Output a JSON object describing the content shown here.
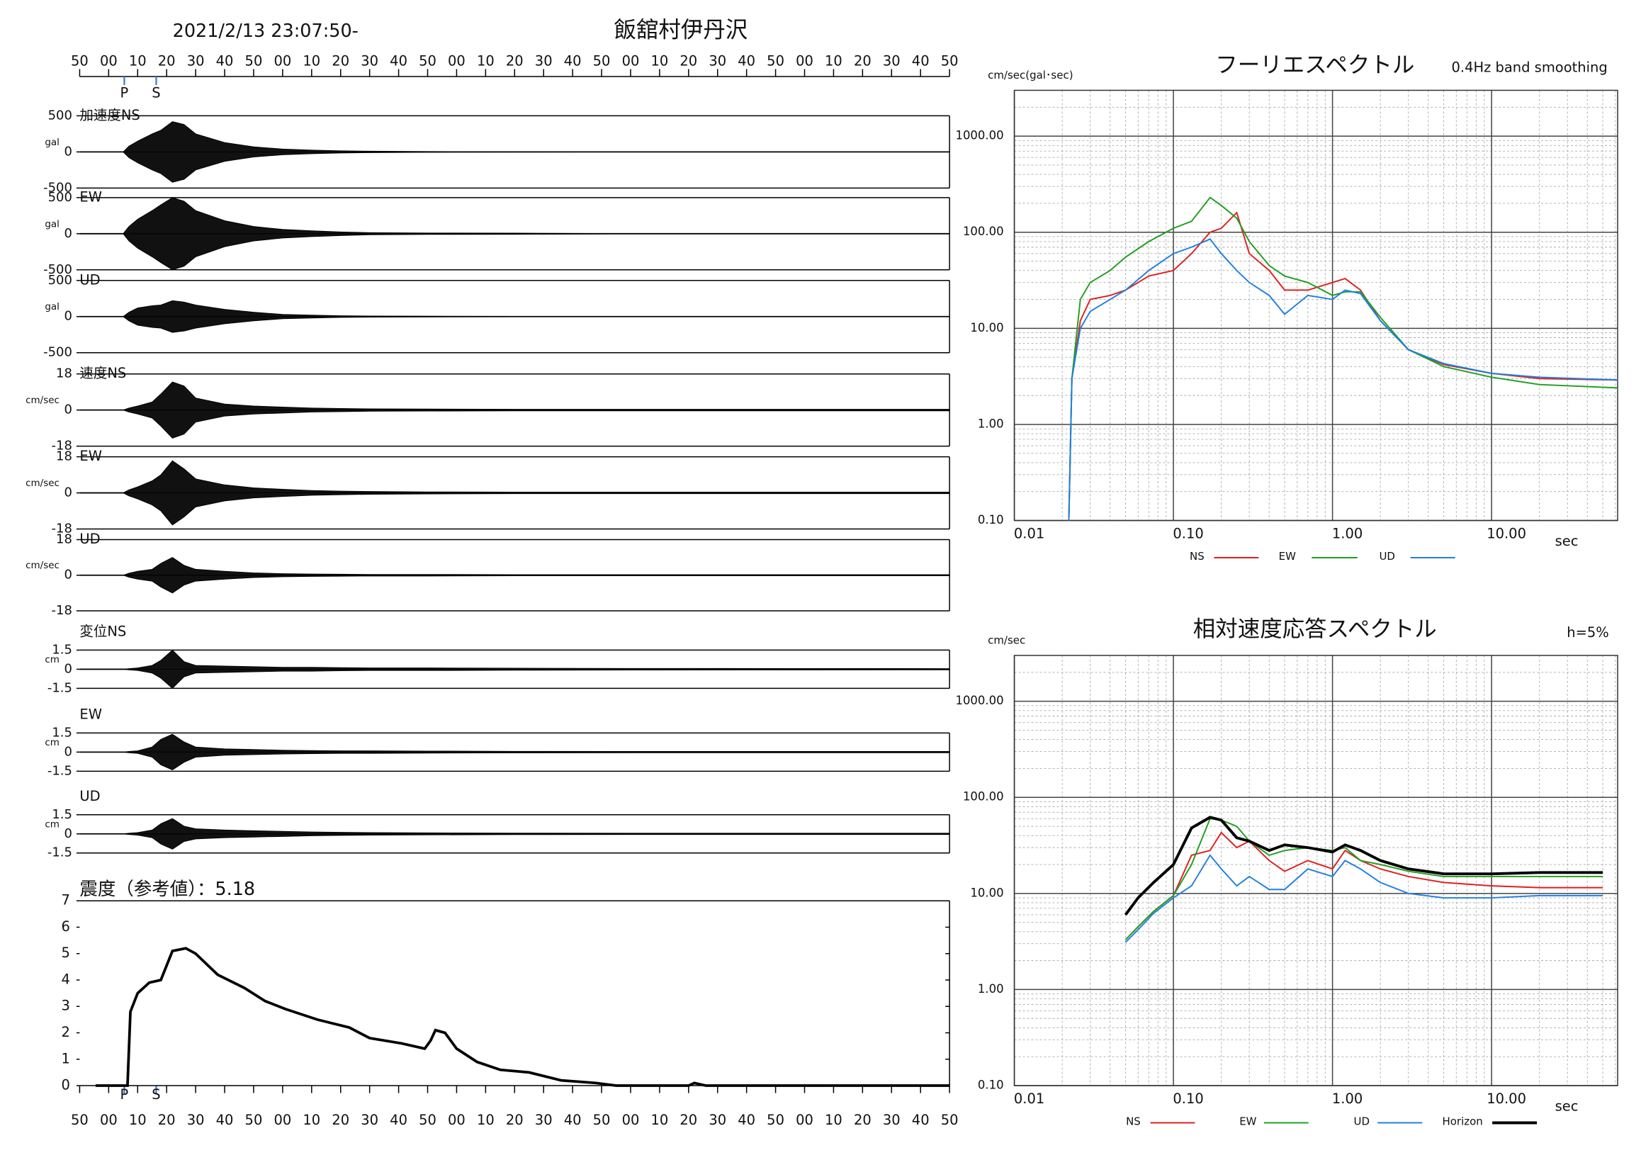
{
  "chart_data": [
    {
      "type": "waveform",
      "title": "飯舘村伊丹沢",
      "subtitle": "2021/2/13 23:07:50-",
      "xlim": [
        0,
        300
      ],
      "xticks": [
        {
          "value": 0,
          "label": "50"
        },
        {
          "value": 10,
          "label": "00"
        },
        {
          "value": 20,
          "label": "10"
        },
        {
          "value": 30,
          "label": "20"
        },
        {
          "value": 40,
          "label": "30"
        },
        {
          "value": 50,
          "label": "40"
        },
        {
          "value": 60,
          "label": "50"
        },
        {
          "value": 70,
          "label": "00"
        },
        {
          "value": 80,
          "label": "10"
        },
        {
          "value": 90,
          "label": "20"
        },
        {
          "value": 100,
          "label": "30"
        },
        {
          "value": 110,
          "label": "40"
        },
        {
          "value": 120,
          "label": "50"
        },
        {
          "value": 130,
          "label": "00"
        },
        {
          "value": 140,
          "label": "10"
        },
        {
          "value": 150,
          "label": "20"
        },
        {
          "value": 160,
          "label": "30"
        },
        {
          "value": 170,
          "label": "40"
        },
        {
          "value": 180,
          "label": "50"
        },
        {
          "value": 190,
          "label": "00"
        },
        {
          "value": 200,
          "label": "10"
        },
        {
          "value": 210,
          "label": "20"
        },
        {
          "value": 220,
          "label": "30"
        },
        {
          "value": 230,
          "label": "40"
        },
        {
          "value": 240,
          "label": "50"
        },
        {
          "value": 250,
          "label": "00"
        },
        {
          "value": 260,
          "label": "10"
        },
        {
          "value": 270,
          "label": "20"
        },
        {
          "value": 280,
          "label": "30"
        },
        {
          "value": 290,
          "label": "40"
        },
        {
          "value": 300,
          "label": "50"
        }
      ],
      "markers": [
        {
          "label": "P",
          "value": 15.4,
          "color": "#3a7ad8"
        },
        {
          "label": "S",
          "value": 26.4,
          "color": "#3a7ad8"
        }
      ],
      "x": [
        0,
        15,
        17,
        20,
        25,
        28,
        32,
        36,
        40,
        50,
        60,
        70,
        80,
        90,
        100,
        120,
        150,
        200,
        300
      ],
      "panels": [
        {
          "label": "加速度NS",
          "unit": "gal",
          "ylim": [
            -500,
            500
          ],
          "yticks": [
            500,
            0,
            -500
          ],
          "values": [
            0,
            0,
            80,
            150,
            250,
            300,
            420,
            380,
            250,
            130,
            70,
            40,
            25,
            15,
            10,
            5,
            3,
            0,
            0
          ]
        },
        {
          "label": "EW",
          "unit": "gal",
          "ylim": [
            -500,
            500
          ],
          "yticks": [
            500,
            0,
            -500
          ],
          "values": [
            0,
            0,
            100,
            200,
            320,
            400,
            500,
            450,
            320,
            180,
            100,
            60,
            40,
            25,
            15,
            10,
            8,
            0,
            0
          ]
        },
        {
          "label": "UD",
          "unit": "gal",
          "ylim": [
            -500,
            500
          ],
          "yticks": [
            500,
            0,
            -500
          ],
          "values": [
            0,
            0,
            60,
            120,
            150,
            160,
            220,
            200,
            160,
            100,
            60,
            30,
            20,
            12,
            8,
            5,
            3,
            0,
            0
          ]
        },
        {
          "label": "速度NS",
          "unit": "cm/sec",
          "ylim": [
            -18,
            18
          ],
          "yticks": [
            18,
            0,
            -18
          ],
          "values": [
            0,
            0,
            1,
            2,
            4,
            8,
            14,
            12,
            6,
            3,
            2,
            1.5,
            1,
            0.8,
            0.6,
            0.5,
            0.4,
            0.4,
            0.4
          ]
        },
        {
          "label": "EW",
          "unit": "cm/sec",
          "ylim": [
            -18,
            18
          ],
          "yticks": [
            18,
            0,
            -18
          ],
          "values": [
            0,
            0,
            1.5,
            3,
            6,
            9,
            16,
            12,
            7,
            4,
            2.5,
            1.8,
            1.2,
            0.9,
            0.7,
            0.5,
            0.4,
            0.4,
            0.4
          ]
        },
        {
          "label": "UD",
          "unit": "cm/sec",
          "ylim": [
            -18,
            18
          ],
          "yticks": [
            18,
            0,
            -18
          ],
          "values": [
            0,
            0,
            1,
            2,
            3,
            6,
            9,
            5,
            3,
            2,
            1.2,
            0.8,
            0.6,
            0.5,
            0.4,
            0.4,
            0.3,
            0.3,
            0.3
          ]
        },
        {
          "label": "変位NS",
          "unit": "cm",
          "ylim": [
            -1.5,
            1.5
          ],
          "yticks": [
            1.5,
            0,
            -1.5
          ],
          "values": [
            0,
            0,
            0.05,
            0.1,
            0.3,
            0.7,
            1.5,
            0.6,
            0.3,
            0.25,
            0.2,
            0.15,
            0.15,
            0.12,
            0.1,
            0.1,
            0.08,
            0.06,
            0.05
          ]
        },
        {
          "label": "EW",
          "unit": "cm",
          "ylim": [
            -1.5,
            1.5
          ],
          "yticks": [
            1.5,
            0,
            -1.5
          ],
          "values": [
            0,
            0,
            0.05,
            0.1,
            0.4,
            1.0,
            1.4,
            0.8,
            0.4,
            0.25,
            0.2,
            0.15,
            0.12,
            0.1,
            0.1,
            0.08,
            0.06,
            0.05,
            0.05
          ]
        },
        {
          "label": "UD",
          "unit": "cm",
          "ylim": [
            -1.5,
            1.5
          ],
          "yticks": [
            1.5,
            0,
            -1.5
          ],
          "values": [
            0,
            0,
            0.05,
            0.1,
            0.3,
            0.8,
            1.2,
            0.6,
            0.4,
            0.3,
            0.25,
            0.2,
            0.15,
            0.12,
            0.1,
            0.08,
            0.06,
            0.05,
            0.05
          ]
        }
      ]
    },
    {
      "type": "line",
      "title": "震度（参考値）：5.18",
      "color": "#000000",
      "x": [
        5.5,
        16.5,
        17.5,
        20,
        24,
        28,
        32,
        36.6,
        40,
        47.6,
        56.8,
        64,
        71,
        82,
        93,
        100,
        111,
        119,
        121,
        122.7,
        126,
        130,
        137,
        145,
        155,
        166,
        178,
        185,
        210,
        212,
        216,
        300
      ],
      "values": [
        0,
        0,
        2.8,
        3.5,
        3.9,
        4.0,
        5.1,
        5.2,
        5.0,
        4.2,
        3.7,
        3.2,
        2.9,
        2.5,
        2.2,
        1.8,
        1.6,
        1.4,
        1.7,
        2.1,
        2.0,
        1.4,
        0.9,
        0.6,
        0.5,
        0.2,
        0.1,
        0,
        0,
        0.1,
        0,
        0
      ],
      "ylim": [
        0,
        7
      ],
      "yticks": [
        0,
        1,
        2,
        3,
        4,
        5,
        6,
        7
      ]
    },
    {
      "type": "line",
      "title": "フーリエスペクトル",
      "subtitle": "0.4Hz band smoothing",
      "y_label": "cm/sec(gal･sec)",
      "x_label": "sec",
      "log_x": true,
      "log_y": true,
      "minor_grid": true,
      "xlim": [
        0.01,
        62
      ],
      "ylim": [
        0.1,
        3000
      ],
      "xticks": [
        0.01,
        {
          "value": 0.1,
          "label": "0.10"
        },
        {
          "value": 1,
          "label": "1.00"
        },
        {
          "value": 10,
          "label": "10.00"
        }
      ],
      "yticks": [
        {
          "value": 0.1,
          "label": "0.10"
        },
        {
          "value": 1,
          "label": "1.00"
        },
        {
          "value": 10,
          "label": "10.00"
        },
        {
          "value": 100,
          "label": "100.00"
        },
        {
          "value": 1000,
          "label": "1000.00"
        }
      ],
      "x": [
        0.022,
        0.023,
        0.026,
        0.03,
        0.04,
        0.05,
        0.07,
        0.1,
        0.13,
        0.17,
        0.2,
        0.25,
        0.3,
        0.4,
        0.5,
        0.7,
        1.0,
        1.2,
        1.5,
        2,
        3,
        5,
        10,
        20,
        62
      ],
      "series": [
        {
          "name": "NS",
          "color": "#e02020",
          "line_width": 1.3,
          "values": [
            0.1,
            3,
            12,
            20,
            22,
            25,
            35,
            40,
            60,
            100,
            110,
            160,
            60,
            40,
            25,
            25,
            30,
            33,
            25,
            12,
            6,
            4.2,
            3.4,
            3.0,
            2.9
          ]
        },
        {
          "name": "EW",
          "color": "#20a020",
          "line_width": 1.3,
          "values": [
            0.1,
            3,
            20,
            30,
            40,
            55,
            80,
            110,
            130,
            230,
            190,
            140,
            80,
            45,
            35,
            30,
            22,
            24,
            24,
            13,
            6,
            4,
            3.1,
            2.6,
            2.4
          ]
        },
        {
          "name": "UD",
          "color": "#2080e0",
          "line_width": 1.3,
          "values": [
            0.1,
            3,
            10,
            15,
            20,
            25,
            40,
            60,
            70,
            85,
            60,
            40,
            30,
            22,
            14,
            22,
            20,
            25,
            23,
            12,
            6,
            4.3,
            3.4,
            3.1,
            2.9
          ]
        }
      ]
    },
    {
      "type": "line",
      "title": "相対速度応答スペクトル",
      "subtitle": "h=5%",
      "y_label": "cm/sec",
      "x_label": "sec",
      "log_x": true,
      "log_y": true,
      "minor_grid": true,
      "xlim": [
        0.01,
        62
      ],
      "ylim": [
        0.1,
        3000
      ],
      "xticks": [
        0.01,
        {
          "value": 0.1,
          "label": "0.10"
        },
        {
          "value": 1,
          "label": "1.00"
        },
        {
          "value": 10,
          "label": "10.00"
        }
      ],
      "yticks": [
        {
          "value": 0.1,
          "label": "0.10"
        },
        {
          "value": 1,
          "label": "1.00"
        },
        {
          "value": 10,
          "label": "10.00"
        },
        {
          "value": 100,
          "label": "100.00"
        },
        {
          "value": 1000,
          "label": "1000.00"
        }
      ],
      "x": [
        0.05,
        0.06,
        0.075,
        0.1,
        0.13,
        0.17,
        0.2,
        0.25,
        0.3,
        0.4,
        0.5,
        0.7,
        1.0,
        1.2,
        1.5,
        2,
        3,
        5,
        10,
        20,
        50
      ],
      "series": [
        {
          "name": "NS",
          "color": "#e02020",
          "line_width": 1.3,
          "values": [
            3.3,
            4.5,
            6.5,
            9.5,
            25,
            28,
            43,
            30,
            35,
            22,
            17,
            22,
            18,
            28,
            22,
            18,
            15,
            13,
            12,
            11.5,
            11.5
          ]
        },
        {
          "name": "EW",
          "color": "#20a020",
          "line_width": 1.3,
          "values": [
            3.3,
            4.5,
            6.5,
            9.5,
            20,
            60,
            58,
            50,
            35,
            25,
            28,
            30,
            28,
            30,
            22,
            20,
            17,
            15,
            15,
            15,
            15
          ]
        },
        {
          "name": "UD",
          "color": "#2080e0",
          "line_width": 1.3,
          "values": [
            3.1,
            4.2,
            6.2,
            9,
            12,
            25,
            18,
            12,
            15,
            11,
            11,
            18,
            15,
            22,
            18,
            13,
            10,
            9,
            9,
            9.5,
            9.5
          ]
        },
        {
          "name": "Horizon",
          "color": "#000000",
          "line_width": 2.6,
          "values": [
            6,
            9,
            13,
            20,
            48,
            62,
            58,
            38,
            35,
            28,
            32,
            30,
            27,
            32,
            28,
            22,
            18,
            16,
            16,
            16.5,
            16.5
          ]
        }
      ]
    }
  ]
}
